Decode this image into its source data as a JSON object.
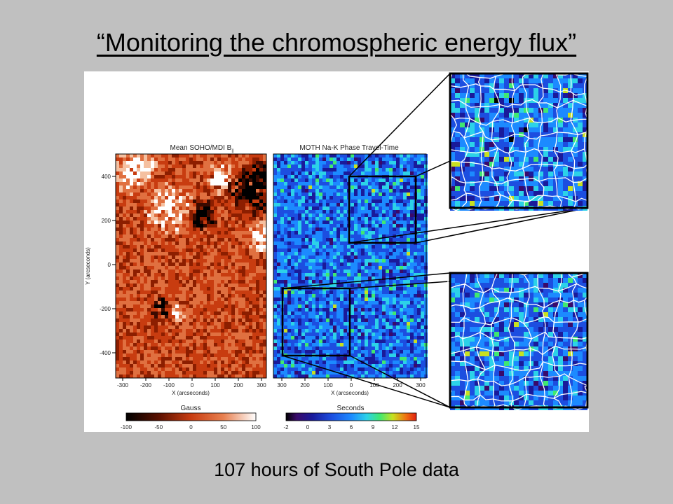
{
  "slide": {
    "title": "“Monitoring the chromospheric energy flux”",
    "caption": "107 hours of South Pole data"
  },
  "figure": {
    "left_panel": {
      "title": "Mean SOHO/MDI B",
      "title_subscript": "||",
      "y_label": "Y (arcseconds)",
      "x_label": "X (arcseconds)",
      "y_ticks": [
        "400",
        "200",
        "0",
        "-200",
        "-400"
      ],
      "x_ticks": [
        "-300",
        "-200",
        "-100",
        "0",
        "100",
        "200",
        "300"
      ],
      "colorbar_title": "Gauss",
      "colorbar_ticks": [
        "-100",
        "-50",
        "0",
        "50",
        "100"
      ],
      "colors": [
        "#000000",
        "#3a0a00",
        "#8c1e00",
        "#c83c10",
        "#e07040",
        "#f5c0a0",
        "#ffffff"
      ]
    },
    "right_panel": {
      "title": "MOTH Na-K Phase Travel-Time",
      "x_label": "X (arcseconds)",
      "x_ticks": [
        "300",
        "200",
        "100",
        "0",
        "100",
        "200",
        "300"
      ],
      "colorbar_title": "Seconds",
      "colorbar_ticks": [
        "-2",
        "0",
        "3",
        "6",
        "9",
        "12",
        "15"
      ],
      "colors": [
        "#000000",
        "#3a0a6a",
        "#1a1a9a",
        "#1c4ee0",
        "#1c8aff",
        "#2cd2e8",
        "#40e870",
        "#c8e020",
        "#f07010",
        "#e02010"
      ]
    },
    "zoom_insets": [
      "upper",
      "lower"
    ]
  }
}
